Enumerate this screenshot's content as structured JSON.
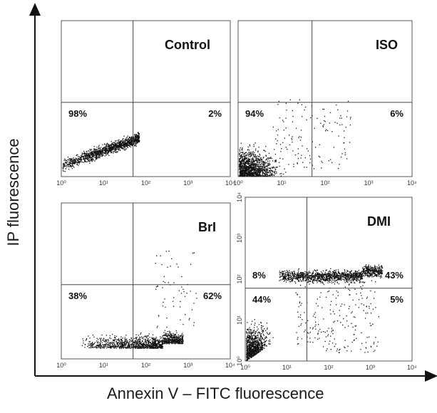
{
  "figure": {
    "xlabel": "Annexin V – FITC fluorescence",
    "ylabel": "IP fluorescence"
  },
  "chart_data": [
    {
      "type": "scatter",
      "title": "Control",
      "x_scale": "log",
      "xlim": [
        1,
        10000
      ],
      "x_tick_labels": [
        "10⁰",
        "10¹",
        "10²",
        "10³",
        "10⁴"
      ],
      "y_scale": "log",
      "ylim": [
        1,
        10000
      ],
      "y_tick_labels": [],
      "quadrant_gates": {
        "x": 50,
        "y": 80
      },
      "quadrant_labels": [
        {
          "text": "98%",
          "position": "lower-left"
        },
        {
          "text": "2%",
          "position": "lower-right"
        }
      ],
      "population": {
        "x_range": [
          1,
          70
        ],
        "y_range": [
          1,
          5
        ],
        "density": "dense, rising to the right"
      }
    },
    {
      "type": "scatter",
      "title": "ISO",
      "x_scale": "log",
      "xlim": [
        1,
        10000
      ],
      "x_tick_labels": [
        "10⁰",
        "10¹",
        "10²",
        "10³",
        "10⁴"
      ],
      "y_scale": "log",
      "ylim": [
        1,
        10000
      ],
      "y_tick_labels": [],
      "quadrant_gates": {
        "x": 50,
        "y": 80
      },
      "quadrant_labels": [
        {
          "text": "94%",
          "position": "lower-left"
        },
        {
          "text": "6%",
          "position": "lower-right"
        }
      ],
      "population": {
        "x_range": [
          1,
          300
        ],
        "y_range": [
          1,
          40
        ],
        "density": "dense near origin, spreading right"
      }
    },
    {
      "type": "scatter",
      "title": "BrI",
      "x_scale": "log",
      "xlim": [
        1,
        10000
      ],
      "x_tick_labels": [
        "10⁰",
        "10¹",
        "10²",
        "10³",
        "10⁴"
      ],
      "y_scale": "log",
      "ylim": [
        1,
        10000
      ],
      "y_tick_labels": [],
      "quadrant_gates": {
        "x": 50,
        "y": 80
      },
      "quadrant_labels": [
        {
          "text": "38%",
          "position": "lower-left"
        },
        {
          "text": "62%",
          "position": "lower-right"
        }
      ],
      "population": {
        "x_range": [
          3,
          800
        ],
        "y_range": [
          1,
          6
        ],
        "density": "band along bottom, densest near 10³"
      }
    },
    {
      "type": "scatter",
      "title": "DMI",
      "x_scale": "log",
      "xlim": [
        1,
        10000
      ],
      "x_tick_labels": [
        "10⁰",
        "10¹",
        "10²",
        "10³",
        "10⁴"
      ],
      "y_scale": "log",
      "ylim": [
        1,
        10000
      ],
      "y_tick_labels": [
        "10⁰",
        "10¹",
        "10²",
        "10³",
        "10⁴"
      ],
      "quadrant_gates": {
        "x": 30,
        "y": 60
      },
      "quadrant_labels": [
        {
          "text": "8%",
          "position": "upper-left"
        },
        {
          "text": "43%",
          "position": "upper-right"
        },
        {
          "text": "44%",
          "position": "lower-left"
        },
        {
          "text": "5%",
          "position": "lower-right"
        }
      ],
      "population": {
        "x_range": [
          1,
          2000
        ],
        "y_range": [
          1,
          300
        ],
        "density": "cluster at origin plus band at IP ~10²"
      }
    }
  ]
}
